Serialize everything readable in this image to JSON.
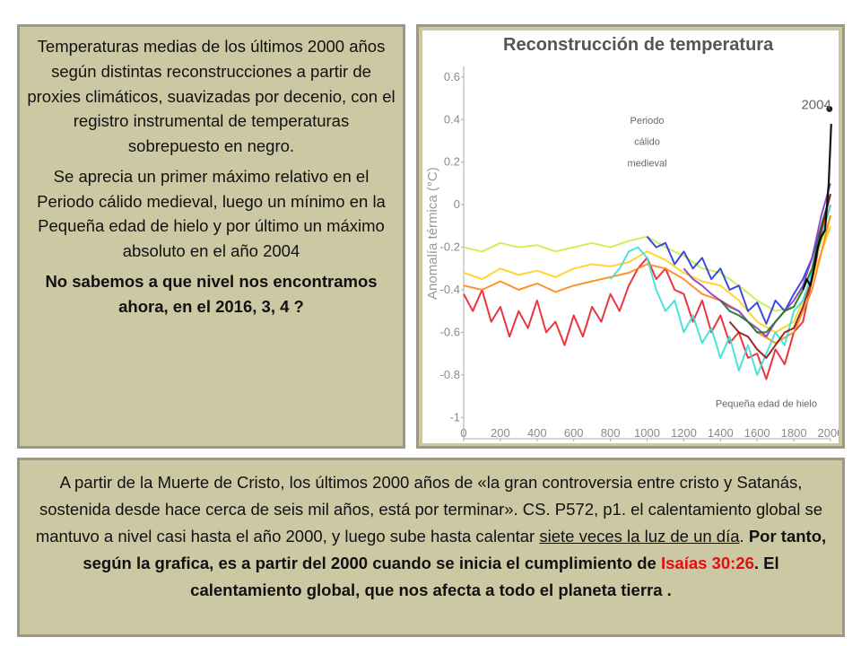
{
  "left_panel": {
    "para1": "Temperaturas medias de los últimos 2000 años según distintas reconstrucciones a partir de proxies climáticos, suavizadas por decenio, con el registro instrumental de temperaturas sobrepuesto en negro.",
    "para2": "Se aprecia un primer máximo relativo en el Periodo cálido medieval, luego un mínimo en la Pequeña edad de hielo y por último un máximo absoluto en el año 2004",
    "question": "No sabemos a que nivel nos encontramos ahora, en el 2016, 3, 4 ?"
  },
  "bottom_panel": {
    "text_a": "A partir de la Muerte de Cristo, los últimos 2000 años de «la gran controversia entre cristo y Satanás, sostenida desde hace cerca de seis mil años, está por terminar». CS. P572, p1. el calentamiento global se mantuvo a nivel casi hasta el año 2000, y luego sube hasta calentar ",
    "text_underlined": "siete veces la luz de un día",
    "text_b": ". ",
    "bold_a": "Por tanto, según la grafica, es a partir del 2000 cuando se inicia el cumplimiento de ",
    "red_ref": "Isaías 30:26",
    "bold_b": ". El calentamiento global, que nos afecta a todo el planeta tierra ."
  },
  "chart_data": {
    "type": "line",
    "title": "Reconstrucción de temperatura",
    "ylabel": "Anomalía térmica (°C)",
    "xlabel": "",
    "xlim": [
      0,
      2000
    ],
    "ylim": [
      -1.1,
      0.65
    ],
    "x_ticks": [
      0,
      200,
      400,
      600,
      800,
      1000,
      1200,
      1400,
      1600,
      1800,
      2000
    ],
    "y_ticks": [
      0.6,
      0.4,
      0.2,
      0,
      -0.2,
      -0.4,
      -0.6,
      -0.8,
      -1
    ],
    "y_tick_labels": [
      "0.6",
      "0.4",
      "0.2",
      "0",
      "-0.2",
      "-0.4",
      "-0.6",
      "-0.8",
      "-1"
    ],
    "annotations": [
      {
        "text": "2004",
        "x": 2004,
        "y": 0.45
      },
      {
        "text": "Periodo",
        "x": 1000,
        "y": 0.38
      },
      {
        "text": "cálido",
        "x": 1000,
        "y": 0.28
      },
      {
        "text": "medieval",
        "x": 1000,
        "y": 0.18
      },
      {
        "text": "Pequeña edad de hielo",
        "x": 1650,
        "y": -0.95
      }
    ],
    "series": [
      {
        "color": "#e8242e",
        "x": [
          0,
          50,
          100,
          150,
          200,
          250,
          300,
          350,
          400,
          450,
          500,
          550,
          600,
          650,
          700,
          750,
          800,
          850,
          900,
          950,
          1000,
          1050,
          1100,
          1150,
          1200,
          1250,
          1300,
          1350,
          1400,
          1450,
          1500,
          1550,
          1600,
          1650,
          1700,
          1750,
          1800,
          1850,
          1900,
          1950,
          2000
        ],
        "values": [
          -0.42,
          -0.5,
          -0.4,
          -0.55,
          -0.48,
          -0.62,
          -0.5,
          -0.58,
          -0.45,
          -0.6,
          -0.55,
          -0.66,
          -0.52,
          -0.62,
          -0.48,
          -0.55,
          -0.42,
          -0.5,
          -0.38,
          -0.3,
          -0.25,
          -0.35,
          -0.3,
          -0.4,
          -0.42,
          -0.55,
          -0.45,
          -0.6,
          -0.52,
          -0.65,
          -0.6,
          -0.72,
          -0.7,
          -0.82,
          -0.68,
          -0.75,
          -0.6,
          -0.55,
          -0.35,
          -0.15,
          0.0
        ]
      },
      {
        "color": "#c8f048",
        "x": [
          0,
          100,
          200,
          300,
          400,
          500,
          600,
          700,
          800,
          900,
          1000,
          1100,
          1200,
          1300,
          1400,
          1500,
          1600,
          1700,
          1800,
          1900,
          2000
        ],
        "values": [
          -0.2,
          -0.22,
          -0.18,
          -0.2,
          -0.19,
          -0.22,
          -0.2,
          -0.18,
          -0.2,
          -0.17,
          -0.15,
          -0.2,
          -0.24,
          -0.3,
          -0.32,
          -0.38,
          -0.45,
          -0.5,
          -0.48,
          -0.3,
          -0.05
        ]
      },
      {
        "color": "#ffd21e",
        "x": [
          0,
          100,
          200,
          300,
          400,
          500,
          600,
          700,
          800,
          900,
          1000,
          1100,
          1200,
          1300,
          1400,
          1500,
          1600,
          1700,
          1800,
          1900,
          2000
        ],
        "values": [
          -0.32,
          -0.35,
          -0.3,
          -0.33,
          -0.31,
          -0.34,
          -0.3,
          -0.28,
          -0.29,
          -0.27,
          -0.22,
          -0.26,
          -0.32,
          -0.36,
          -0.38,
          -0.45,
          -0.55,
          -0.6,
          -0.55,
          -0.35,
          -0.1
        ]
      },
      {
        "color": "#ff8a18",
        "x": [
          0,
          100,
          200,
          300,
          400,
          500,
          600,
          700,
          800,
          900,
          1000,
          1100,
          1200,
          1300,
          1400,
          1500,
          1600,
          1700,
          1800,
          1900,
          2000
        ],
        "values": [
          -0.38,
          -0.4,
          -0.36,
          -0.4,
          -0.37,
          -0.41,
          -0.38,
          -0.36,
          -0.34,
          -0.32,
          -0.28,
          -0.3,
          -0.35,
          -0.42,
          -0.45,
          -0.5,
          -0.6,
          -0.65,
          -0.6,
          -0.4,
          -0.05
        ]
      },
      {
        "color": "#3ce0d8",
        "x": [
          800,
          850,
          900,
          950,
          1000,
          1050,
          1100,
          1150,
          1200,
          1250,
          1300,
          1350,
          1400,
          1450,
          1500,
          1550,
          1600,
          1650,
          1700,
          1750,
          1800,
          1850,
          1900,
          1950,
          2000
        ],
        "values": [
          -0.35,
          -0.3,
          -0.22,
          -0.2,
          -0.25,
          -0.4,
          -0.5,
          -0.45,
          -0.6,
          -0.52,
          -0.65,
          -0.58,
          -0.72,
          -0.62,
          -0.78,
          -0.66,
          -0.8,
          -0.7,
          -0.6,
          -0.66,
          -0.5,
          -0.45,
          -0.32,
          -0.15,
          0.0
        ]
      },
      {
        "color": "#2a3ae0",
        "x": [
          1000,
          1050,
          1100,
          1150,
          1200,
          1250,
          1300,
          1350,
          1400,
          1450,
          1500,
          1550,
          1600,
          1650,
          1700,
          1750,
          1800,
          1850,
          1900,
          1950,
          2000
        ],
        "values": [
          -0.15,
          -0.2,
          -0.18,
          -0.28,
          -0.22,
          -0.3,
          -0.25,
          -0.35,
          -0.3,
          -0.4,
          -0.38,
          -0.5,
          -0.46,
          -0.56,
          -0.45,
          -0.5,
          -0.42,
          -0.35,
          -0.25,
          -0.1,
          0.05
        ]
      },
      {
        "color": "#8a3ec8",
        "x": [
          1200,
          1250,
          1300,
          1350,
          1400,
          1450,
          1500,
          1550,
          1600,
          1650,
          1700,
          1750,
          1800,
          1850,
          1900,
          1950,
          2000
        ],
        "values": [
          -0.3,
          -0.35,
          -0.38,
          -0.42,
          -0.45,
          -0.48,
          -0.5,
          -0.55,
          -0.58,
          -0.62,
          -0.55,
          -0.5,
          -0.45,
          -0.38,
          -0.25,
          -0.05,
          0.1
        ]
      },
      {
        "color": "#1a7a2a",
        "x": [
          1400,
          1450,
          1500,
          1550,
          1600,
          1650,
          1700,
          1750,
          1800,
          1850,
          1900,
          1950,
          2000
        ],
        "values": [
          -0.45,
          -0.5,
          -0.52,
          -0.55,
          -0.6,
          -0.6,
          -0.55,
          -0.5,
          -0.48,
          -0.4,
          -0.3,
          -0.1,
          0.05
        ]
      },
      {
        "color": "#8a1a10",
        "x": [
          1450,
          1500,
          1550,
          1600,
          1650,
          1700,
          1750,
          1800,
          1850,
          1900,
          1950,
          2000
        ],
        "values": [
          -0.55,
          -0.6,
          -0.62,
          -0.68,
          -0.72,
          -0.66,
          -0.6,
          -0.58,
          -0.48,
          -0.35,
          -0.12,
          0.05
        ]
      },
      {
        "color": "#000000",
        "x": [
          1850,
          1870,
          1890,
          1910,
          1930,
          1950,
          1970,
          1990,
          2004
        ],
        "values": [
          -0.4,
          -0.35,
          -0.38,
          -0.3,
          -0.2,
          -0.15,
          -0.12,
          0.1,
          0.38
        ]
      }
    ]
  }
}
